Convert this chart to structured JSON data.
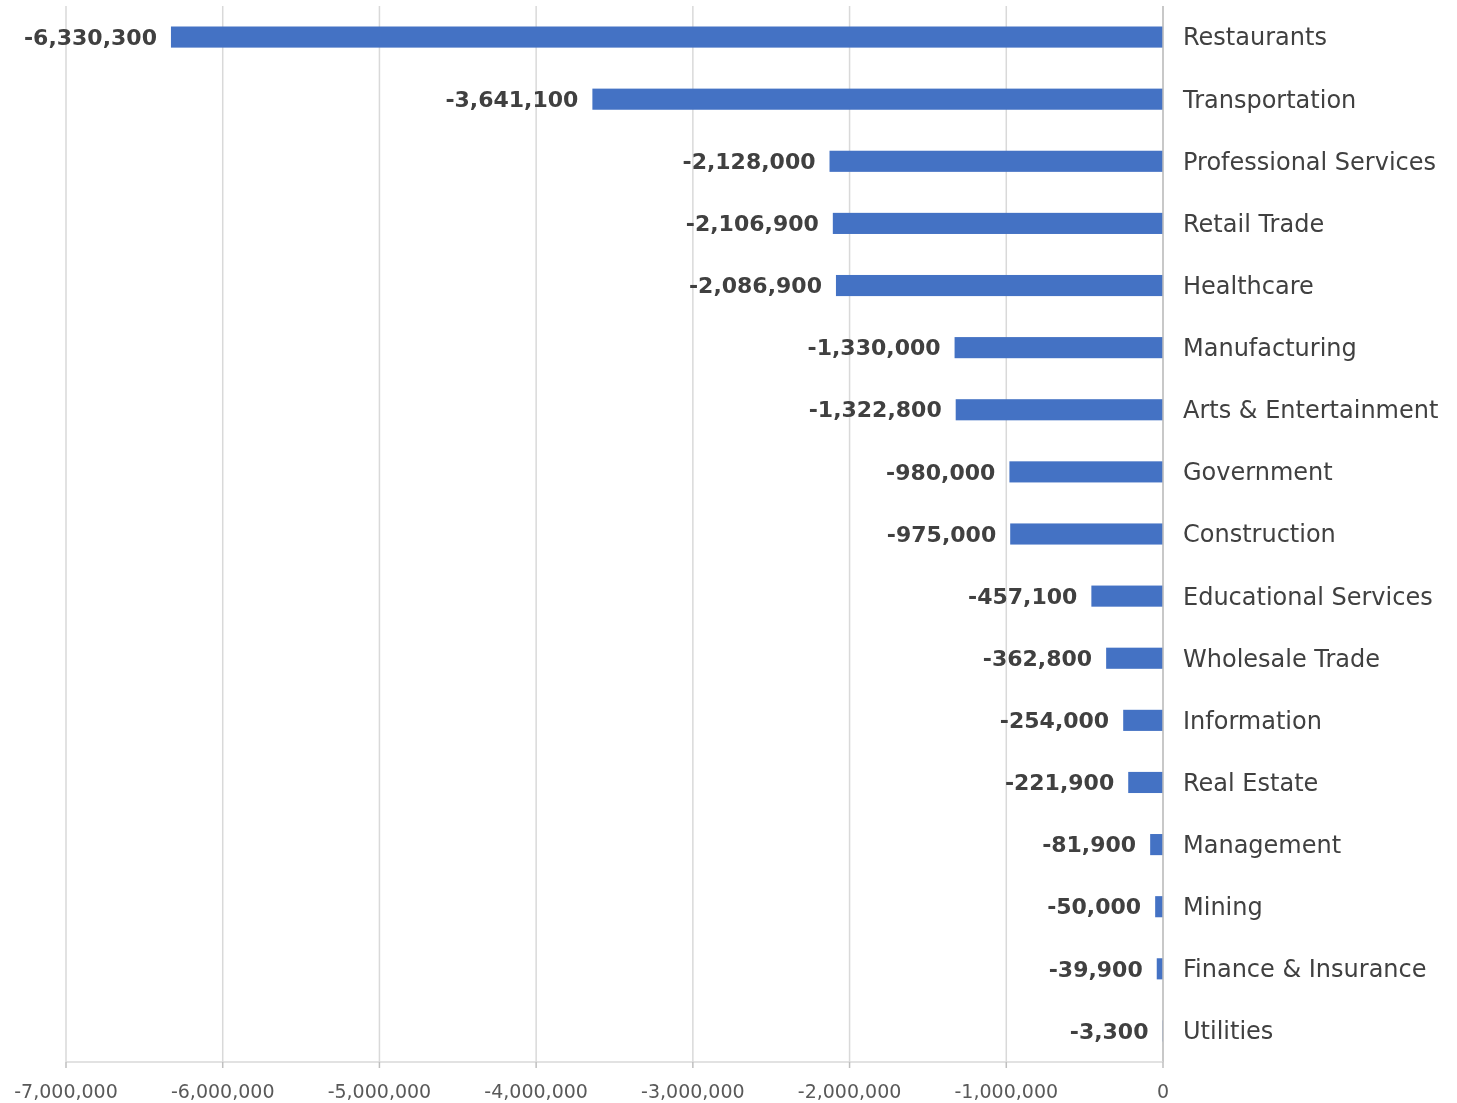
{
  "chart_data": {
    "type": "bar",
    "orientation": "horizontal",
    "categories": [
      "Restaurants",
      "Transportation",
      "Professional Services",
      "Retail Trade",
      "Healthcare",
      "Manufacturing",
      "Arts & Entertainment",
      "Government",
      "Construction",
      "Educational Services",
      "Wholesale Trade",
      "Information",
      "Real Estate",
      "Management",
      "Mining",
      "Finance & Insurance",
      "Utilities"
    ],
    "values": [
      -6330300,
      -3641100,
      -2128000,
      -2106900,
      -2086900,
      -1330000,
      -1322800,
      -980000,
      -975000,
      -457100,
      -362800,
      -254000,
      -221900,
      -81900,
      -50000,
      -39900,
      -3300
    ],
    "color": "#4472c4",
    "xlim": [
      -7000000,
      0
    ],
    "xticks": [
      {
        "value": -7000000,
        "label": "-7,000,000"
      },
      {
        "value": -6000000,
        "label": "-6,000,000"
      },
      {
        "value": -5000000,
        "label": "-5,000,000"
      },
      {
        "value": -4000000,
        "label": "-4,000,000"
      },
      {
        "value": -3000000,
        "label": "-3,000,000"
      },
      {
        "value": -2000000,
        "label": "-2,000,000"
      },
      {
        "value": -1000000,
        "label": "-1,000,000"
      },
      0
    ],
    "value_labels": [
      "-6,330,300",
      "-3,641,100",
      "-2,128,000",
      "-2,106,900",
      "-2,086,900",
      "-1,330,000",
      "-1,322,800",
      "-980,000",
      "-975,000",
      "-457,100",
      "-362,800",
      "-254,000",
      "-221,900",
      "-81,900",
      "-50,000",
      "-39,900",
      "-3,300"
    ],
    "grid": "x"
  }
}
